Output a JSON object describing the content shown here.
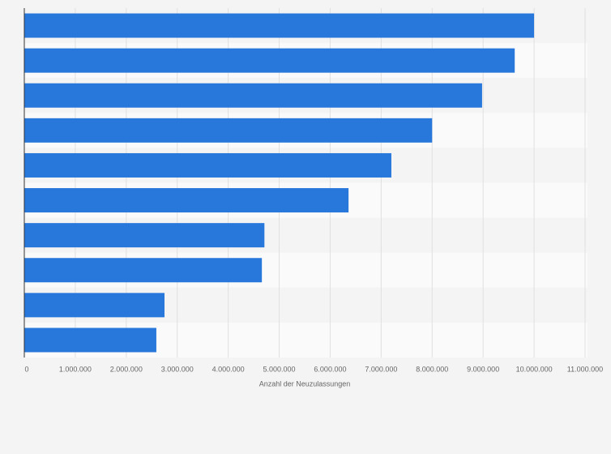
{
  "chart_data": {
    "type": "hbar",
    "xlabel": "Anzahl der Neuzulassungen",
    "categories": [
      null,
      null,
      null,
      null,
      null,
      null,
      null,
      null,
      null,
      null
    ],
    "values": [
      10000000,
      9620000,
      8980000,
      8000000,
      7200000,
      6360000,
      4710000,
      4660000,
      2750000,
      2590000
    ],
    "color": "#2878dc",
    "xlim": [
      0,
      11000000
    ],
    "xticks": [
      0,
      {
        "value": 1000000,
        "label": "1.000.000"
      },
      {
        "value": 2000000,
        "label": "2.000.000"
      },
      {
        "value": 3000000,
        "label": "3.000.000"
      },
      {
        "value": 4000000,
        "label": "4.000.000"
      },
      {
        "value": 5000000,
        "label": "5.000.000"
      },
      {
        "value": 6000000,
        "label": "6.000.000"
      },
      {
        "value": 7000000,
        "label": "7.000.000"
      },
      {
        "value": 8000000,
        "label": "8.000.000"
      },
      {
        "value": 9000000,
        "label": "9.000.000"
      },
      {
        "value": 10000000,
        "label": "10.000.000"
      },
      {
        "value": 11000000,
        "label": "11.000.000"
      }
    ],
    "grid": true
  }
}
